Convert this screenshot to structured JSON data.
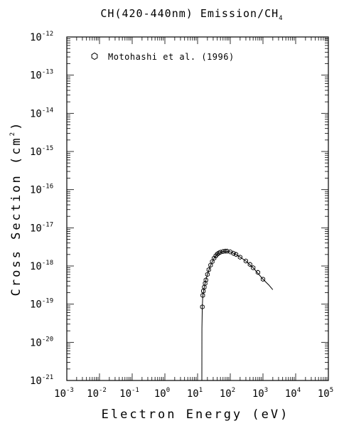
{
  "chart_data": {
    "type": "scatter",
    "title": "CH(420-440nm) Emission/CH",
    "title_subscript": "4",
    "xlabel": "Electron Energy (eV)",
    "ylabel": "Cross Section (cm",
    "ylabel_superscript": "2",
    "ylabel_suffix": ")",
    "x_scale": "log",
    "y_scale": "log",
    "xlim": [
      0.001,
      100000
    ],
    "ylim": [
      1e-21,
      1e-12
    ],
    "x_ticks": [
      {
        "base": "10",
        "exp": "-3"
      },
      {
        "base": "10",
        "exp": "-2"
      },
      {
        "base": "10",
        "exp": "-1"
      },
      {
        "base": "10",
        "exp": "0"
      },
      {
        "base": "10",
        "exp": "1"
      },
      {
        "base": "10",
        "exp": "2"
      },
      {
        "base": "10",
        "exp": "3"
      },
      {
        "base": "10",
        "exp": "4"
      },
      {
        "base": "10",
        "exp": "5"
      }
    ],
    "y_ticks": [
      {
        "base": "10",
        "exp": "-12"
      },
      {
        "base": "10",
        "exp": "-13"
      },
      {
        "base": "10",
        "exp": "-14"
      },
      {
        "base": "10",
        "exp": "-15"
      },
      {
        "base": "10",
        "exp": "-16"
      },
      {
        "base": "10",
        "exp": "-17"
      },
      {
        "base": "10",
        "exp": "-18"
      },
      {
        "base": "10",
        "exp": "-19"
      },
      {
        "base": "10",
        "exp": "-20"
      },
      {
        "base": "10",
        "exp": "-21"
      }
    ],
    "grid": false,
    "legend_position": "top-left",
    "series": [
      {
        "name": "Motohashi et al. (1996)",
        "marker": "hexagon-open",
        "points": [
          {
            "x": 14.0,
            "y": 8.5e-20
          },
          {
            "x": 14.4,
            "y": 1.7e-19
          },
          {
            "x": 15.0,
            "y": 2.2e-19
          },
          {
            "x": 16.0,
            "y": 2.8e-19
          },
          {
            "x": 17.0,
            "y": 3.5e-19
          },
          {
            "x": 18.0,
            "y": 4.3e-19
          },
          {
            "x": 20.0,
            "y": 6e-19
          },
          {
            "x": 22.0,
            "y": 8e-19
          },
          {
            "x": 25.0,
            "y": 1.05e-18
          },
          {
            "x": 28.0,
            "y": 1.3e-18
          },
          {
            "x": 32.0,
            "y": 1.6e-18
          },
          {
            "x": 36.0,
            "y": 1.85e-18
          },
          {
            "x": 40.0,
            "y": 2.05e-18
          },
          {
            "x": 45.0,
            "y": 2.2e-18
          },
          {
            "x": 50.0,
            "y": 2.3e-18
          },
          {
            "x": 60.0,
            "y": 2.4e-18
          },
          {
            "x": 70.0,
            "y": 2.45e-18
          },
          {
            "x": 80.0,
            "y": 2.45e-18
          },
          {
            "x": 100.0,
            "y": 2.35e-18
          },
          {
            "x": 125.0,
            "y": 2.15e-18
          },
          {
            "x": 150.0,
            "y": 2e-18
          },
          {
            "x": 200.0,
            "y": 1.7e-18
          },
          {
            "x": 300.0,
            "y": 1.35e-18
          },
          {
            "x": 400.0,
            "y": 1.1e-18
          },
          {
            "x": 500.0,
            "y": 9e-19
          },
          {
            "x": 700.0,
            "y": 6.8e-19
          },
          {
            "x": 1000.0,
            "y": 4.5e-19
          }
        ],
        "fit_curve": [
          {
            "x": 13.5,
            "y": 1e-21
          },
          {
            "x": 13.6,
            "y": 2.3e-20
          },
          {
            "x": 13.9,
            "y": 8e-20
          },
          {
            "x": 14.4,
            "y": 1.7e-19
          },
          {
            "x": 16.0,
            "y": 2.8e-19
          },
          {
            "x": 18.0,
            "y": 4.3e-19
          },
          {
            "x": 20.0,
            "y": 6e-19
          },
          {
            "x": 25.0,
            "y": 1.05e-18
          },
          {
            "x": 32.0,
            "y": 1.6e-18
          },
          {
            "x": 40.0,
            "y": 2.05e-18
          },
          {
            "x": 50.0,
            "y": 2.3e-18
          },
          {
            "x": 70.0,
            "y": 2.45e-18
          },
          {
            "x": 100.0,
            "y": 2.35e-18
          },
          {
            "x": 150.0,
            "y": 2e-18
          },
          {
            "x": 200.0,
            "y": 1.7e-18
          },
          {
            "x": 300.0,
            "y": 1.35e-18
          },
          {
            "x": 500.0,
            "y": 9e-19
          },
          {
            "x": 1000.0,
            "y": 4.5e-19
          },
          {
            "x": 1500.0,
            "y": 3.2e-19
          },
          {
            "x": 2000.0,
            "y": 2.4e-19
          }
        ]
      }
    ]
  }
}
